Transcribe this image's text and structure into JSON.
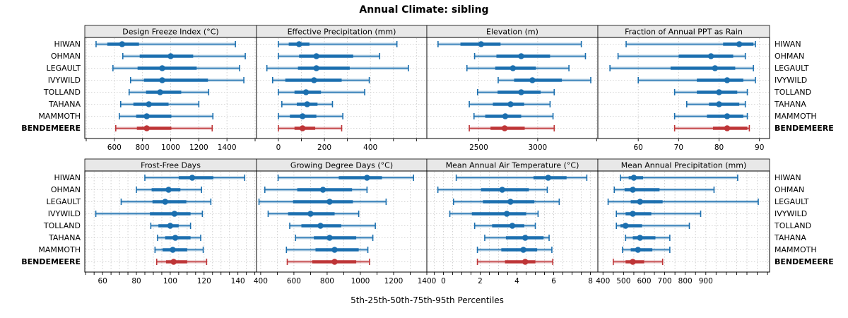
{
  "title": "Annual Climate: sibling",
  "axis_caption": "5th-25th-50th-75th-95th Percentiles",
  "colors": {
    "series_blue": "#1B6FAF",
    "highlight_red": "#BE3537",
    "strip_bg": "#E8E8E8",
    "gridline": "#CBCBCB",
    "row_guide": "#D4D4D4",
    "panel_border": "#000000"
  },
  "chart_data": {
    "type": "trellis-percentile-dotplot",
    "percentile_labels": [
      "5th",
      "25th",
      "50th",
      "75th",
      "95th"
    ],
    "sites": [
      "HIWAN",
      "OHMAN",
      "LEGAULT",
      "IVYWILD",
      "TOLLAND",
      "TAHANA",
      "MAMMOTH",
      "BENDEMEERE"
    ],
    "highlight_site": "BENDEMEERE",
    "panels": [
      {
        "title": "Design Freeze Index (°C)",
        "row": 0,
        "col": 0,
        "xlim": [
          390,
          1610
        ],
        "grid": [
          400,
          600,
          800,
          1000,
          1200,
          1400,
          1600
        ],
        "tick_labels": [
          600,
          800,
          1000,
          1200,
          1400
        ],
        "values": [
          [
            470,
            550,
            655,
            775,
            1460
          ],
          [
            660,
            780,
            1000,
            1160,
            1530
          ],
          [
            590,
            765,
            940,
            1185,
            1490
          ],
          [
            715,
            810,
            940,
            1265,
            1520
          ],
          [
            705,
            825,
            925,
            1075,
            1270
          ],
          [
            645,
            735,
            845,
            985,
            1200
          ],
          [
            635,
            755,
            830,
            1005,
            1300
          ],
          [
            610,
            760,
            830,
            1005,
            1295
          ]
        ]
      },
      {
        "title": "Effective Precipitation (mm)",
        "row": 0,
        "col": 1,
        "xlim": [
          -95,
          645
        ],
        "grid": [
          0,
          100,
          200,
          300,
          400,
          500,
          600
        ],
        "tick_labels": [
          0,
          200,
          400
        ],
        "values": [
          [
            0,
            45,
            90,
            135,
            515
          ],
          [
            0,
            90,
            165,
            325,
            440
          ],
          [
            -50,
            85,
            165,
            310,
            565
          ],
          [
            -25,
            30,
            155,
            275,
            395
          ],
          [
            0,
            70,
            120,
            185,
            375
          ],
          [
            15,
            80,
            125,
            170,
            235
          ],
          [
            0,
            50,
            105,
            165,
            280
          ],
          [
            0,
            70,
            105,
            160,
            275
          ]
        ]
      },
      {
        "title": "Elevation (m)",
        "row": 0,
        "col": 2,
        "xlim": [
          2060,
          3510
        ],
        "grid": [
          2500,
          3000,
          3500
        ],
        "tick_labels": [
          2500,
          3000
        ],
        "values": [
          [
            2155,
            2345,
            2520,
            2685,
            3370
          ],
          [
            2465,
            2650,
            2860,
            3105,
            3405
          ],
          [
            2400,
            2640,
            2790,
            2985,
            3265
          ],
          [
            2665,
            2800,
            2955,
            3205,
            3450
          ],
          [
            2490,
            2660,
            2860,
            3025,
            3140
          ],
          [
            2420,
            2620,
            2770,
            2885,
            3105
          ],
          [
            2460,
            2555,
            2725,
            2860,
            3130
          ],
          [
            2420,
            2600,
            2720,
            2890,
            3140
          ]
        ]
      },
      {
        "title": "Fraction of Annual PPT as Rain",
        "row": 0,
        "col": 3,
        "xlim": [
          50,
          92.5
        ],
        "grid": [
          60,
          70,
          80,
          90
        ],
        "tick_labels": [
          60,
          70,
          80,
          90
        ],
        "values": [
          [
            57,
            81,
            85,
            88.5,
            89
          ],
          [
            55,
            70,
            78,
            83.5,
            86.5
          ],
          [
            53,
            68,
            79,
            84,
            88.5
          ],
          [
            60,
            74.5,
            82,
            86,
            89
          ],
          [
            69,
            74.5,
            80,
            84.5,
            87
          ],
          [
            72,
            77.5,
            80,
            85,
            86.5
          ],
          [
            69,
            77,
            82,
            86,
            87
          ],
          [
            69,
            78.5,
            82,
            87,
            87.5
          ]
        ]
      },
      {
        "title": "Frost-Free Days",
        "row": 1,
        "col": 0,
        "xlim": [
          49.5,
          151
        ],
        "grid": [
          50,
          55,
          60,
          65,
          70,
          75,
          80,
          85,
          90,
          95,
          100,
          105,
          110,
          115,
          120,
          125,
          130,
          135,
          140,
          145,
          150
        ],
        "tick_labels": [
          60,
          80,
          100,
          120,
          140
        ],
        "values": [
          [
            85,
            105,
            113,
            125.5,
            144
          ],
          [
            80,
            89,
            99,
            106,
            118.5
          ],
          [
            71,
            89.5,
            97,
            109.5,
            124
          ],
          [
            56,
            88,
            102.5,
            112,
            119
          ],
          [
            88.5,
            93,
            100,
            105,
            112
          ],
          [
            92.5,
            97,
            103,
            112,
            118
          ],
          [
            91,
            95.5,
            101.5,
            110,
            119.5
          ],
          [
            92,
            97.5,
            102,
            110,
            121.5
          ]
        ]
      },
      {
        "title": "Growing Degree Days (°C)",
        "row": 1,
        "col": 1,
        "xlim": [
          375,
          1400
        ],
        "grid": [
          400,
          500,
          600,
          700,
          800,
          900,
          1000,
          1100,
          1200,
          1300,
          1400
        ],
        "tick_labels": [
          400,
          600,
          800,
          1000,
          1200,
          1400
        ],
        "values": [
          [
            505,
            870,
            1040,
            1130,
            1320
          ],
          [
            425,
            620,
            775,
            950,
            1040
          ],
          [
            390,
            595,
            815,
            955,
            1155
          ],
          [
            445,
            565,
            700,
            845,
            990
          ],
          [
            575,
            645,
            760,
            885,
            1090
          ],
          [
            610,
            720,
            815,
            975,
            1075
          ],
          [
            555,
            730,
            845,
            990,
            1045
          ],
          [
            560,
            710,
            845,
            975,
            1055
          ]
        ]
      },
      {
        "title": "Mean Annual Air Temperature (°C)",
        "row": 1,
        "col": 2,
        "xlim": [
          -0.9,
          8.4
        ],
        "grid": [
          -0.5,
          0,
          0.5,
          1,
          1.5,
          2,
          2.5,
          3,
          3.5,
          4,
          4.5,
          5,
          5.5,
          6,
          6.5,
          7,
          7.5,
          8
        ],
        "tick_labels": [
          0,
          2,
          4,
          6,
          8
        ],
        "values": [
          [
            0.7,
            4.9,
            5.7,
            6.7,
            7.8
          ],
          [
            -0.3,
            2.05,
            3.2,
            4.65,
            5.65
          ],
          [
            0.55,
            2.15,
            3.65,
            4.95,
            6.3
          ],
          [
            0.35,
            1.55,
            3.45,
            4.5,
            5.15
          ],
          [
            1.7,
            2.65,
            3.75,
            4.4,
            5.0
          ],
          [
            2.25,
            3.4,
            4.45,
            5.45,
            5.75
          ],
          [
            1.85,
            3.15,
            4.35,
            5.1,
            5.9
          ],
          [
            1.85,
            3.35,
            4.45,
            5.0,
            5.95
          ]
        ]
      },
      {
        "title": "Mean Annual Precipitation (mm)",
        "row": 1,
        "col": 3,
        "xlim": [
          375,
          1210
        ],
        "grid": [
          400,
          450,
          500,
          550,
          600,
          650,
          700,
          750,
          800,
          850,
          900,
          950,
          1000,
          1050,
          1100,
          1150,
          1200
        ],
        "tick_labels": [
          400,
          500,
          600,
          700,
          800,
          900
        ],
        "values": [
          [
            485,
            525,
            550,
            595,
            1055
          ],
          [
            455,
            505,
            545,
            675,
            940
          ],
          [
            425,
            535,
            580,
            690,
            1155
          ],
          [
            465,
            510,
            545,
            635,
            875
          ],
          [
            465,
            485,
            510,
            590,
            820
          ],
          [
            510,
            545,
            580,
            655,
            725
          ],
          [
            495,
            535,
            570,
            640,
            725
          ],
          [
            450,
            510,
            545,
            600,
            690
          ]
        ]
      }
    ]
  }
}
